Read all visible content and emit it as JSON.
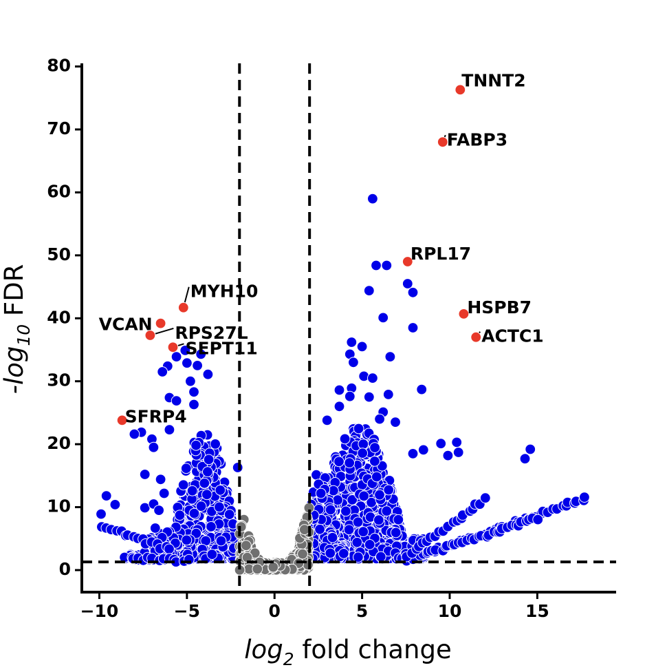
{
  "chart_data": {
    "type": "scatter",
    "title": "",
    "xlabel": {
      "base": "log",
      "sub": "2",
      "rest": " fold change"
    },
    "ylabel": {
      "prefix": "-log",
      "sub": "10",
      "rest": " FDR"
    },
    "xlim": [
      -11,
      19.5
    ],
    "ylim": [
      -3.5,
      80.5
    ],
    "xticks": [
      -10,
      -5,
      0,
      5,
      10,
      15
    ],
    "xtick_labels": [
      "−10",
      "−5",
      "0",
      "5",
      "10",
      "15"
    ],
    "yticks": [
      0,
      10,
      20,
      30,
      40,
      50,
      60,
      70,
      80
    ],
    "ytick_labels": [
      "0",
      "10",
      "20",
      "30",
      "40",
      "50",
      "60",
      "70",
      "80"
    ],
    "grid": false,
    "thresholds": {
      "log2fc": [
        -2,
        2
      ],
      "neg_log10_fdr": 1.3
    },
    "colors": {
      "significant": "#0000e8",
      "not_significant": "#707070",
      "highlighted": "#e8392a",
      "threshold_line": "#000000"
    },
    "highlighted_genes": [
      {
        "name": "TNNT2",
        "x": 10.6,
        "y": 76.3
      },
      {
        "name": "FABP3",
        "x": 9.6,
        "y": 68.0
      },
      {
        "name": "RPL17",
        "x": 7.6,
        "y": 49.0
      },
      {
        "name": "HSPB7",
        "x": 10.8,
        "y": 40.7
      },
      {
        "name": "ACTC1",
        "x": 11.5,
        "y": 37.0
      },
      {
        "name": "MYH10",
        "x": -5.2,
        "y": 41.7
      },
      {
        "name": "VCAN",
        "x": -6.5,
        "y": 39.2
      },
      {
        "name": "RPS27L",
        "x": -7.1,
        "y": 37.3
      },
      {
        "name": "SEPT11",
        "x": -5.8,
        "y": 35.4
      },
      {
        "name": "SFRP4",
        "x": -8.7,
        "y": 23.8
      }
    ],
    "significant_points": [
      [
        5.6,
        59.0
      ],
      [
        5.8,
        48.4
      ],
      [
        6.4,
        48.4
      ],
      [
        7.6,
        45.5
      ],
      [
        7.9,
        44.1
      ],
      [
        5.4,
        44.4
      ],
      [
        6.2,
        40.1
      ],
      [
        7.9,
        38.5
      ],
      [
        4.4,
        36.2
      ],
      [
        5.0,
        35.5
      ],
      [
        4.3,
        34.3
      ],
      [
        4.5,
        33.0
      ],
      [
        6.6,
        33.9
      ],
      [
        5.1,
        30.8
      ],
      [
        5.6,
        30.5
      ],
      [
        4.4,
        28.9
      ],
      [
        3.7,
        28.6
      ],
      [
        4.3,
        27.6
      ],
      [
        5.4,
        27.5
      ],
      [
        6.5,
        27.9
      ],
      [
        8.4,
        28.7
      ],
      [
        3.7,
        26.0
      ],
      [
        6.2,
        25.1
      ],
      [
        6.0,
        24.0
      ],
      [
        6.9,
        23.5
      ],
      [
        3.0,
        23.8
      ],
      [
        9.5,
        20.1
      ],
      [
        10.4,
        20.3
      ],
      [
        9.9,
        18.2
      ],
      [
        10.5,
        18.7
      ],
      [
        14.6,
        19.2
      ],
      [
        14.3,
        17.7
      ],
      [
        8.5,
        19.1
      ],
      [
        7.9,
        18.5
      ],
      [
        -5.1,
        34.9
      ],
      [
        -4.2,
        34.3
      ],
      [
        -5.6,
        33.9
      ],
      [
        -5.0,
        32.9
      ],
      [
        -4.4,
        32.5
      ],
      [
        -6.1,
        32.4
      ],
      [
        -6.4,
        31.5
      ],
      [
        -3.8,
        31.1
      ],
      [
        -4.8,
        30.0
      ],
      [
        -4.6,
        28.3
      ],
      [
        -6.0,
        27.4
      ],
      [
        -5.6,
        26.9
      ],
      [
        -4.6,
        26.3
      ],
      [
        -7.6,
        21.9
      ],
      [
        -8.0,
        21.6
      ],
      [
        -7.0,
        20.8
      ],
      [
        -6.0,
        22.3
      ],
      [
        -6.9,
        19.5
      ],
      [
        -7.4,
        15.2
      ],
      [
        -6.5,
        14.4
      ],
      [
        -6.3,
        12.2
      ],
      [
        -9.6,
        11.8
      ],
      [
        -9.1,
        10.4
      ],
      [
        -9.9,
        8.9
      ],
      [
        -7.4,
        9.9
      ],
      [
        -6.9,
        10.5
      ],
      [
        -6.6,
        9.5
      ],
      [
        -2.1,
        16.3
      ],
      [
        -3.1,
        12.7
      ],
      [
        -4.0,
        13.8
      ]
    ],
    "clusters": [
      {
        "class": "significant",
        "count": 900,
        "x": [
          3.0,
          8.5
        ],
        "y": [
          1.8,
          23.0
        ],
        "xpeak": 4.8,
        "seed": 11
      },
      {
        "class": "significant",
        "count": 220,
        "x": [
          2.1,
          4.0
        ],
        "y": [
          1.8,
          16.0
        ],
        "xpeak": 2.6,
        "seed": 12
      },
      {
        "class": "significant",
        "count": 520,
        "x": [
          -6.3,
          -2.3
        ],
        "y": [
          1.8,
          22.0
        ],
        "xpeak": -4.0,
        "seed": 13
      },
      {
        "class": "significant",
        "count": 90,
        "x": [
          -8.5,
          -5.5
        ],
        "y": [
          1.6,
          7.5
        ],
        "xpeak": -6.5,
        "seed": 14
      },
      {
        "class": "not_significant",
        "count": 480,
        "x": [
          -2.0,
          2.0
        ],
        "y": [
          0.0,
          11.0
        ],
        "xpeak": 0.0,
        "seed": 15
      }
    ],
    "arms": [
      {
        "x0": 8.0,
        "x1": 17.8,
        "y0": 2.0,
        "y1": 11.5,
        "count": 42,
        "seed": 21
      },
      {
        "x0": 7.6,
        "x1": 15.0,
        "y0": 1.6,
        "y1": 8.2,
        "count": 36,
        "seed": 22
      },
      {
        "x0": 7.6,
        "x1": 12.0,
        "y0": 2.2,
        "y1": 11.2,
        "count": 20,
        "seed": 23
      },
      {
        "x0": -9.8,
        "x1": -6.0,
        "y0": 6.9,
        "y1": 3.2,
        "count": 16,
        "seed": 24
      },
      {
        "x0": -8.5,
        "x1": -5.0,
        "y0": 2.0,
        "y1": 1.5,
        "count": 14,
        "seed": 25
      }
    ]
  }
}
